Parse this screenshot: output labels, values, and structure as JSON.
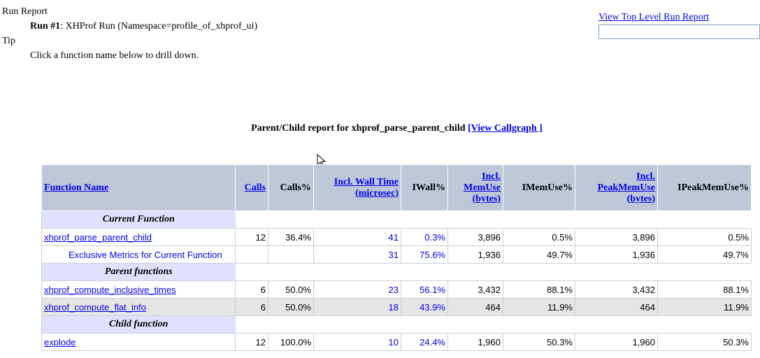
{
  "header": {
    "run_report": "Run Report",
    "run_label": "Run #1",
    "run_text": ": XHProf Run (Namespace=profile_of_xhprof_ui)",
    "tip": "Tip",
    "tip_text": "Click a function name below to drill down."
  },
  "top_link": "View Top Level Run Report",
  "report": {
    "title": "Parent/Child report for xhprof_parse_parent_child",
    "callgraph_link": "[View Callgraph ]"
  },
  "table": {
    "columns": {
      "name": "Function Name",
      "calls": "Calls",
      "calls_pct": "Calls%",
      "wall_1": "Incl. Wall Time",
      "wall_2": "(microsec)",
      "iwall": "IWall%",
      "mem_1": "Incl.",
      "mem_2": "MemUse",
      "mem_3": "(bytes)",
      "imem": "IMemUse%",
      "peak_1": "Incl.",
      "peak_2": "PeakMemUse",
      "peak_3": "(bytes)",
      "ipeak": "IPeakMemUse%"
    },
    "sections": {
      "current": "Current Function",
      "parents": "Parent functions",
      "children": "Child function"
    },
    "current": {
      "name": "xhprof_parse_parent_child",
      "calls": "12",
      "calls_pct": "36.4%",
      "wall": "41",
      "iwall": "0.3%",
      "mem": "3,896",
      "imem": "0.5%",
      "peak": "3,896",
      "ipeak": "0.5%"
    },
    "exclusive": {
      "name": "Exclusive Metrics for Current Function",
      "wall": "31",
      "iwall": "75.6%",
      "mem": "1,936",
      "imem": "49.7%",
      "peak": "1,936",
      "ipeak": "49.7%"
    },
    "parents": [
      {
        "name": "xhprof_compute_inclusive_times",
        "calls": "6",
        "calls_pct": "50.0%",
        "wall": "23",
        "iwall": "56.1%",
        "mem": "3,432",
        "imem": "88.1%",
        "peak": "3,432",
        "ipeak": "88.1%"
      },
      {
        "name": "xhprof_compute_flat_info",
        "calls": "6",
        "calls_pct": "50.0%",
        "wall": "18",
        "iwall": "43.9%",
        "mem": "464",
        "imem": "11.9%",
        "peak": "464",
        "ipeak": "11.9%"
      }
    ],
    "children": [
      {
        "name": "explode",
        "calls": "12",
        "calls_pct": "100.0%",
        "wall": "10",
        "iwall": "24.4%",
        "mem": "1,960",
        "imem": "50.3%",
        "peak": "1,960",
        "ipeak": "50.3%"
      }
    ]
  }
}
